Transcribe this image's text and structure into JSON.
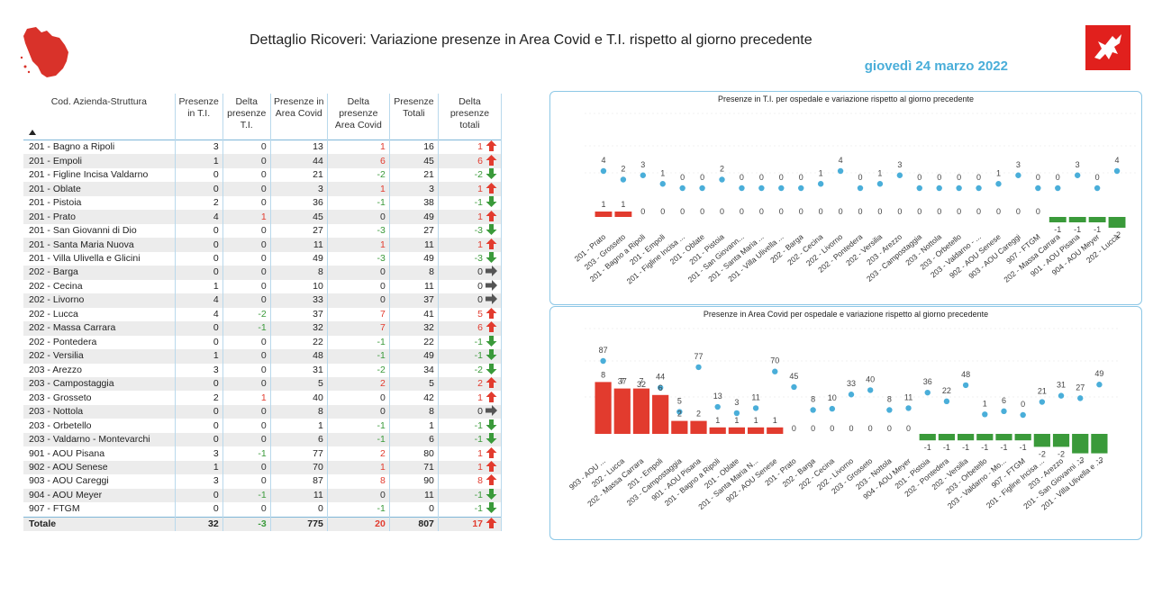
{
  "header": {
    "title": "Dettaglio Ricoveri: Variazione presenze in Area Covid e T.I. rispetto al giorno precedente",
    "date": "giovedì 24 marzo 2022"
  },
  "colors": {
    "accent": "#4aaed9",
    "positive": "#e23b2e",
    "negative": "#3a9a3a",
    "neutral": "#555555"
  },
  "table": {
    "columns": [
      "Cod. Azienda-Struttura",
      "Presenze in T.I.",
      "Delta presenze T.I.",
      "Presenze in Area Covid",
      "Delta presenze Area Covid",
      "Presenze Totali",
      "Delta presenze totali"
    ],
    "sort_icon": "sort-ascending-icon",
    "rows": [
      {
        "name": "201 - Bagno a Ripoli",
        "ti": "3",
        "dti": "0",
        "ac": "13",
        "dac": "1",
        "tot": "16",
        "dtot": "1",
        "trend": "up"
      },
      {
        "name": "201 - Empoli",
        "ti": "1",
        "dti": "0",
        "ac": "44",
        "dac": "6",
        "tot": "45",
        "dtot": "6",
        "trend": "up"
      },
      {
        "name": "201 - Figline Incisa Valdarno",
        "ti": "0",
        "dti": "0",
        "ac": "21",
        "dac": "-2",
        "tot": "21",
        "dtot": "-2",
        "trend": "down"
      },
      {
        "name": "201 - Oblate",
        "ti": "0",
        "dti": "0",
        "ac": "3",
        "dac": "1",
        "tot": "3",
        "dtot": "1",
        "trend": "up"
      },
      {
        "name": "201 - Pistoia",
        "ti": "2",
        "dti": "0",
        "ac": "36",
        "dac": "-1",
        "tot": "38",
        "dtot": "-1",
        "trend": "down"
      },
      {
        "name": "201 - Prato",
        "ti": "4",
        "dti": "1",
        "ac": "45",
        "dac": "0",
        "tot": "49",
        "dtot": "1",
        "trend": "up"
      },
      {
        "name": "201 - San Giovanni di Dio",
        "ti": "0",
        "dti": "0",
        "ac": "27",
        "dac": "-3",
        "tot": "27",
        "dtot": "-3",
        "trend": "down"
      },
      {
        "name": "201 - Santa Maria Nuova",
        "ti": "0",
        "dti": "0",
        "ac": "11",
        "dac": "1",
        "tot": "11",
        "dtot": "1",
        "trend": "up"
      },
      {
        "name": "201 - Villa Ulivella e Glicini",
        "ti": "0",
        "dti": "0",
        "ac": "49",
        "dac": "-3",
        "tot": "49",
        "dtot": "-3",
        "trend": "down"
      },
      {
        "name": "202 - Barga",
        "ti": "0",
        "dti": "0",
        "ac": "8",
        "dac": "0",
        "tot": "8",
        "dtot": "0",
        "trend": "flat"
      },
      {
        "name": "202 - Cecina",
        "ti": "1",
        "dti": "0",
        "ac": "10",
        "dac": "0",
        "tot": "11",
        "dtot": "0",
        "trend": "flat"
      },
      {
        "name": "202 - Livorno",
        "ti": "4",
        "dti": "0",
        "ac": "33",
        "dac": "0",
        "tot": "37",
        "dtot": "0",
        "trend": "flat"
      },
      {
        "name": "202 - Lucca",
        "ti": "4",
        "dti": "-2",
        "ac": "37",
        "dac": "7",
        "tot": "41",
        "dtot": "5",
        "trend": "up"
      },
      {
        "name": "202 - Massa Carrara",
        "ti": "0",
        "dti": "-1",
        "ac": "32",
        "dac": "7",
        "tot": "32",
        "dtot": "6",
        "trend": "up"
      },
      {
        "name": "202 - Pontedera",
        "ti": "0",
        "dti": "0",
        "ac": "22",
        "dac": "-1",
        "tot": "22",
        "dtot": "-1",
        "trend": "down"
      },
      {
        "name": "202 - Versilia",
        "ti": "1",
        "dti": "0",
        "ac": "48",
        "dac": "-1",
        "tot": "49",
        "dtot": "-1",
        "trend": "down"
      },
      {
        "name": "203 - Arezzo",
        "ti": "3",
        "dti": "0",
        "ac": "31",
        "dac": "-2",
        "tot": "34",
        "dtot": "-2",
        "trend": "down"
      },
      {
        "name": "203 - Campostaggia",
        "ti": "0",
        "dti": "0",
        "ac": "5",
        "dac": "2",
        "tot": "5",
        "dtot": "2",
        "trend": "up"
      },
      {
        "name": "203 - Grosseto",
        "ti": "2",
        "dti": "1",
        "ac": "40",
        "dac": "0",
        "tot": "42",
        "dtot": "1",
        "trend": "up"
      },
      {
        "name": "203 - Nottola",
        "ti": "0",
        "dti": "0",
        "ac": "8",
        "dac": "0",
        "tot": "8",
        "dtot": "0",
        "trend": "flat"
      },
      {
        "name": "203 - Orbetello",
        "ti": "0",
        "dti": "0",
        "ac": "1",
        "dac": "-1",
        "tot": "1",
        "dtot": "-1",
        "trend": "down"
      },
      {
        "name": "203 - Valdarno - Montevarchi",
        "ti": "0",
        "dti": "0",
        "ac": "6",
        "dac": "-1",
        "tot": "6",
        "dtot": "-1",
        "trend": "down"
      },
      {
        "name": "901 - AOU Pisana",
        "ti": "3",
        "dti": "-1",
        "ac": "77",
        "dac": "2",
        "tot": "80",
        "dtot": "1",
        "trend": "up"
      },
      {
        "name": "902 - AOU Senese",
        "ti": "1",
        "dti": "0",
        "ac": "70",
        "dac": "1",
        "tot": "71",
        "dtot": "1",
        "trend": "up"
      },
      {
        "name": "903 - AOU Careggi",
        "ti": "3",
        "dti": "0",
        "ac": "87",
        "dac": "8",
        "tot": "90",
        "dtot": "8",
        "trend": "up"
      },
      {
        "name": "904 - AOU Meyer",
        "ti": "0",
        "dti": "-1",
        "ac": "11",
        "dac": "0",
        "tot": "11",
        "dtot": "-1",
        "trend": "down"
      },
      {
        "name": "907 - FTGM",
        "ti": "0",
        "dti": "0",
        "ac": "0",
        "dac": "-1",
        "tot": "0",
        "dtot": "-1",
        "trend": "down"
      }
    ],
    "total": {
      "name": "Totale",
      "ti": "32",
      "dti": "-3",
      "ac": "775",
      "dac": "20",
      "tot": "807",
      "dtot": "17",
      "trend": "up"
    }
  },
  "chart_data": [
    {
      "type": "bar",
      "title": "Presenze in T.I. per ospedale e variazione rispetto al giorno precedente",
      "categories": [
        "201 - Prato",
        "203 - Grosseto",
        "201 - Bagno a Ripoli",
        "201 - Empoli",
        "201 - Figline Incisa ...",
        "201 - Oblate",
        "201 - Pistoia",
        "201 - San Giovann...",
        "201 - Santa Maria ...",
        "201 - Villa Ulivella ...",
        "202 - Barga",
        "202 - Cecina",
        "202 - Livorno",
        "202 - Pontedera",
        "202 - Versilia",
        "203 - Arezzo",
        "203 - Campostaggia",
        "203 - Nottola",
        "203 - Orbetello",
        "203 - Valdarno - ...",
        "902 - AOU Senese",
        "903 - AOU Careggi",
        "907 - FTGM",
        "202 - Massa Carrara",
        "901 - AOU Pisana",
        "904 - AOU Meyer",
        "202 - Lucca"
      ],
      "series": [
        {
          "kind": "point",
          "values": [
            4,
            2,
            3,
            1,
            0,
            0,
            2,
            0,
            0,
            0,
            0,
            1,
            4,
            0,
            1,
            3,
            0,
            0,
            0,
            0,
            1,
            3,
            0,
            0,
            3,
            0,
            4
          ]
        },
        {
          "kind": "bar",
          "values": [
            1,
            1,
            0,
            0,
            0,
            0,
            0,
            0,
            0,
            0,
            0,
            0,
            0,
            0,
            0,
            0,
            0,
            0,
            0,
            0,
            0,
            0,
            0,
            -1,
            -1,
            -1,
            -2
          ]
        }
      ]
    },
    {
      "type": "bar",
      "title": "Presenze in Area Covid per ospedale e variazione rispetto al giorno precedente",
      "categories": [
        "903 - AOU ...",
        "202 - Lucca",
        "202 - Massa Carrara",
        "201 - Empoli",
        "203 - Campostaggia",
        "901 - AOU Pisana",
        "201 - Bagno a Ripoli",
        "201 - Oblate",
        "201 - Santa Maria N...",
        "902 - AOU Senese",
        "201 - Prato",
        "202 - Barga",
        "202 - Cecina",
        "202 - Livorno",
        "203 - Grosseto",
        "203 - Nottola",
        "904 - AOU Meyer",
        "201 - Pistoia",
        "202 - Pontedera",
        "202 - Versilia",
        "203 - Orbetello",
        "203 - Valdarno - Mo...",
        "907 - FTGM",
        "201 - Figline Incisa ...",
        "203 - Arezzo",
        "201 - San Giovanni ...",
        "201 - Villa Ulivella e ..."
      ],
      "series": [
        {
          "kind": "point",
          "values": [
            87,
            37,
            32,
            44,
            5,
            77,
            13,
            3,
            11,
            70,
            45,
            8,
            10,
            33,
            40,
            8,
            11,
            36,
            22,
            48,
            1,
            6,
            0,
            21,
            31,
            27,
            49
          ]
        },
        {
          "kind": "bar",
          "values": [
            8,
            7,
            7,
            6,
            2,
            2,
            1,
            1,
            1,
            1,
            0,
            0,
            0,
            0,
            0,
            0,
            0,
            -1,
            -1,
            -1,
            -1,
            -1,
            -1,
            -2,
            -2,
            -3,
            -3
          ]
        }
      ]
    }
  ]
}
